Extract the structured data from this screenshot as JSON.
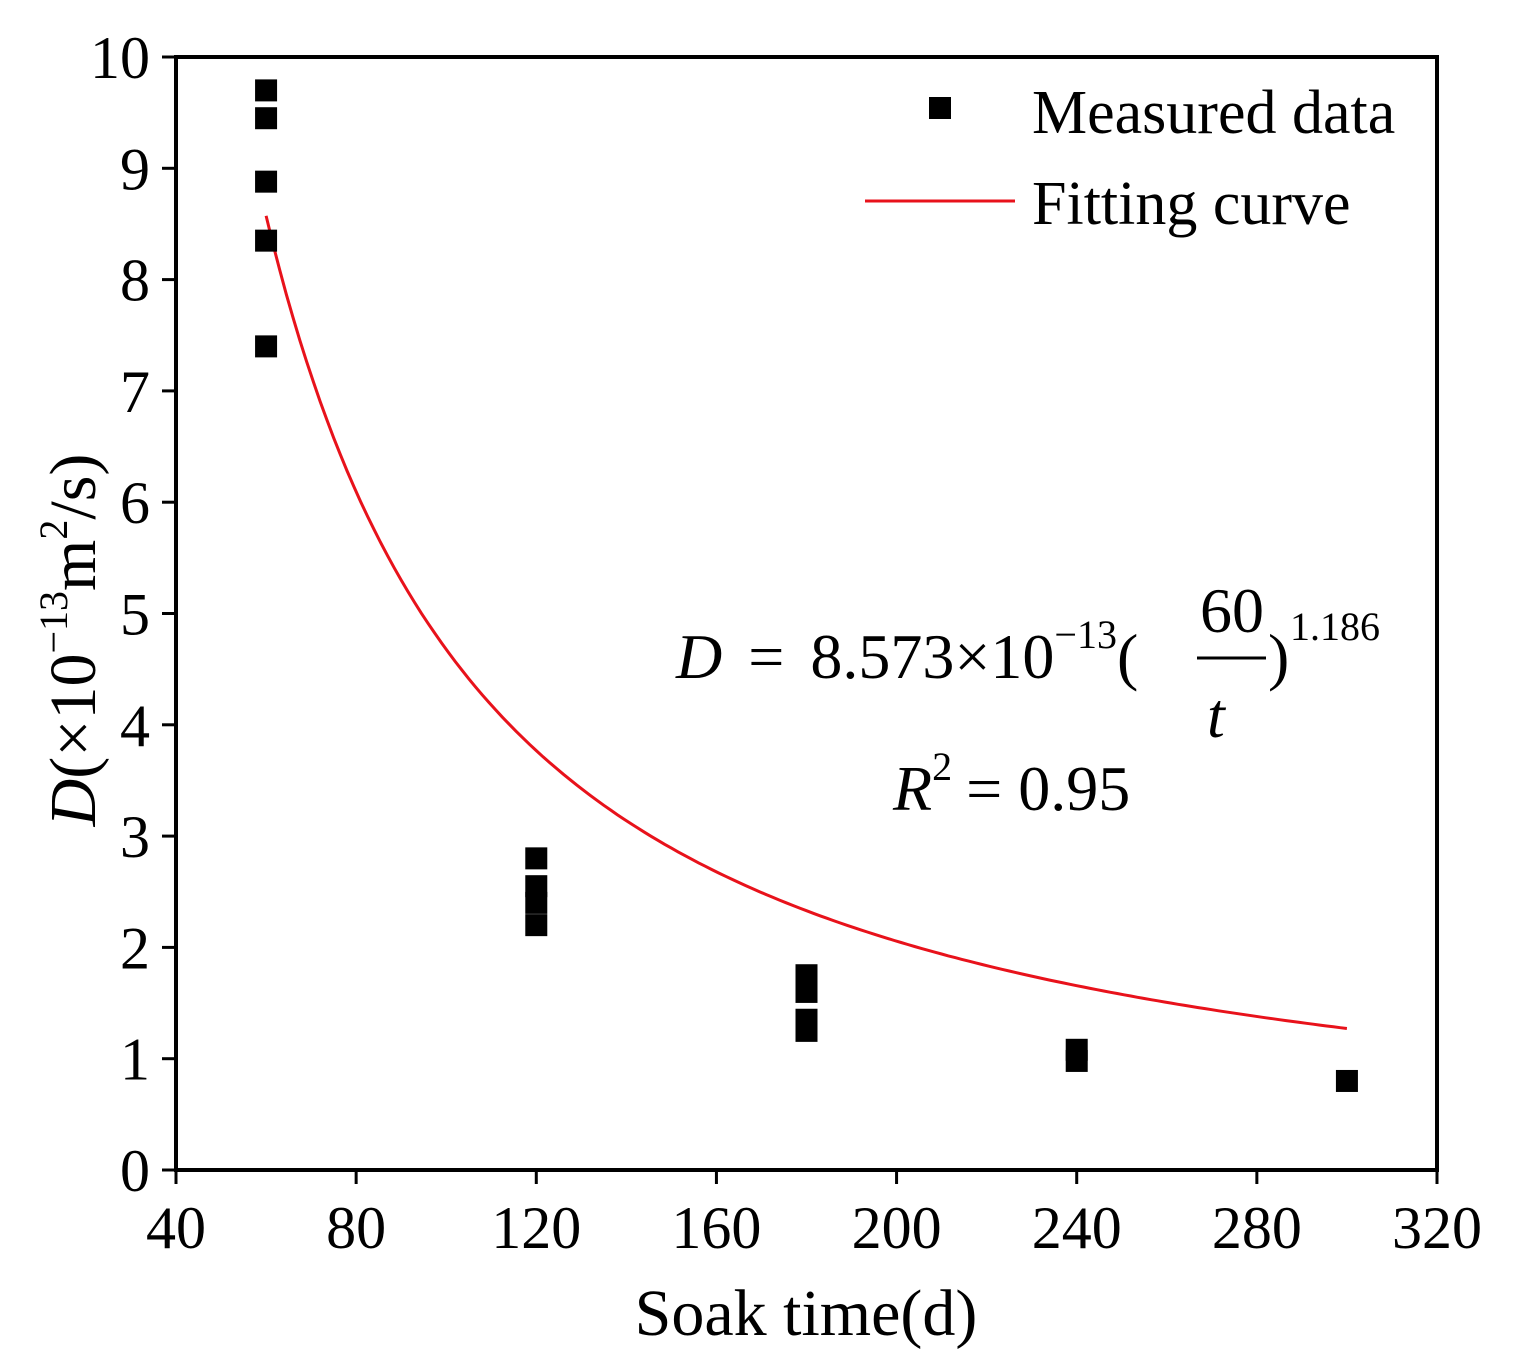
{
  "chart_data": {
    "type": "scatter",
    "xlabel": "Soak time(d)",
    "ylabel": {
      "var": "D",
      "prefix": "(×10",
      "exp": "−13",
      "unit": "m",
      "unit_exp": "2",
      "suffix": "/s)"
    },
    "xlim": [
      40,
      320
    ],
    "ylim": [
      0,
      10
    ],
    "xticks": [
      40,
      80,
      120,
      160,
      200,
      240,
      280,
      320
    ],
    "yticks": [
      0,
      1,
      2,
      3,
      4,
      5,
      6,
      7,
      8,
      9,
      10
    ],
    "grid": false,
    "legend_position": "top-right",
    "series": [
      {
        "name": "Measured data",
        "kind": "points",
        "color": "#000000",
        "points": [
          [
            60,
            9.7
          ],
          [
            60,
            9.45
          ],
          [
            60,
            8.88
          ],
          [
            60,
            8.35
          ],
          [
            60,
            7.4
          ],
          [
            120,
            2.8
          ],
          [
            120,
            2.55
          ],
          [
            120,
            2.4
          ],
          [
            120,
            2.2
          ],
          [
            180,
            1.75
          ],
          [
            180,
            1.6
          ],
          [
            180,
            1.35
          ],
          [
            180,
            1.25
          ],
          [
            240,
            1.08
          ],
          [
            240,
            0.98
          ],
          [
            300,
            0.8
          ]
        ]
      },
      {
        "name": "Fitting curve",
        "kind": "curve",
        "color": "#e8121b",
        "model": "power",
        "coefficient": 8.573,
        "reference": 60,
        "exponent": 1.186,
        "x_range": [
          60,
          300
        ]
      }
    ],
    "annotations": {
      "equation": {
        "lhs": "D",
        "eq": "=",
        "coef": "8.573×10",
        "coef_exp": "−13",
        "open": "(",
        "numerator": "60",
        "denominator": "t",
        "close": ")",
        "exp": "1.186"
      },
      "r_squared": {
        "var": "R",
        "var_exp": "2",
        "text": "= 0.95"
      }
    }
  }
}
